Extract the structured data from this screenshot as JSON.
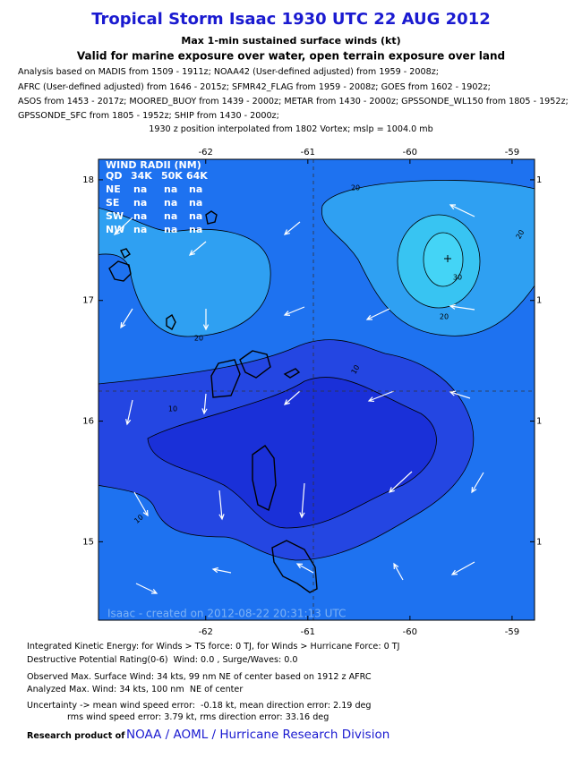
{
  "header": {
    "title": "Tropical Storm Isaac 1930 UTC 22 AUG 2012",
    "subtitle": "Max 1-min sustained surface winds (kt)",
    "subtitle2": "Valid for marine exposure over water, open terrain exposure over land",
    "analysis": [
      "Analysis based on MADIS from 1509 - 1911z; NOAA42 (User-defined adjusted) from 1959 - 2008z;",
      "AFRC (User-defined adjusted) from 1646 - 2015z; SFMR42_FLAG from 1959 - 2008z; GOES from 1602 - 1902z;",
      "ASOS from 1453 - 2017z; MOORED_BUOY from 1439 - 2000z; METAR from 1430 - 2000z; GPSSONDE_WL150 from 1805 - 1952z;",
      "GPSSONDE_SFC from 1805 - 1952z; SHIP from 1430 - 2000z;"
    ],
    "position": "1930 z position interpolated from 1802 Vortex; mslp = 1004.0 mb"
  },
  "map": {
    "xlim": [
      -63.05,
      -58.78
    ],
    "ylim": [
      14.35,
      18.17
    ],
    "lon_ticks": [
      -62,
      -61,
      -60,
      -59
    ],
    "lat_ticks": [
      18,
      17,
      16,
      15
    ],
    "lat_ticks_right": [
      {
        "value": 18,
        "label": "1"
      },
      {
        "value": 17,
        "label": "1"
      },
      {
        "value": 16,
        "label": "1"
      },
      {
        "value": 15,
        "label": "1"
      }
    ],
    "wind_radii": {
      "title": "WIND RADII (NM)",
      "header": [
        "QD",
        "34K",
        "50K",
        "64K"
      ],
      "rows": [
        [
          "NE",
          "na",
          "na",
          "na"
        ],
        [
          "SE",
          "na",
          "na",
          "na"
        ],
        [
          "SW",
          "na",
          "na",
          "na"
        ],
        [
          "NW",
          "na",
          "na",
          "na"
        ]
      ]
    },
    "contour_labels": [
      "20",
      "30",
      "20",
      "20",
      "20",
      "10",
      "10",
      "10"
    ],
    "credit": "Isaac - created on 2012-08-22 20:31:13 UTC"
  },
  "footer": {
    "lines": [
      "Integrated Kinetic Energy: for Winds > TS force: 0 TJ, for Winds > Hurricane Force: 0 TJ",
      "Destructive Potential Rating(0-6)  Wind: 0.0 , Surge/Waves: 0.0",
      "Observed Max. Surface Wind: 34 kts, 99 nm NE of center based on 1912 z AFRC",
      "Analyzed Max. Wind: 34 kts, 100 nm  NE of center",
      "Uncertainty -> mean wind speed error:  -0.18 kt, mean direction error: 2.19 deg",
      "rms wind speed error: 3.79 kt, rms direction error: 33.16 deg"
    ],
    "research": "Research product of",
    "org": "NOAA / AOML / Hurricane Research Division"
  }
}
